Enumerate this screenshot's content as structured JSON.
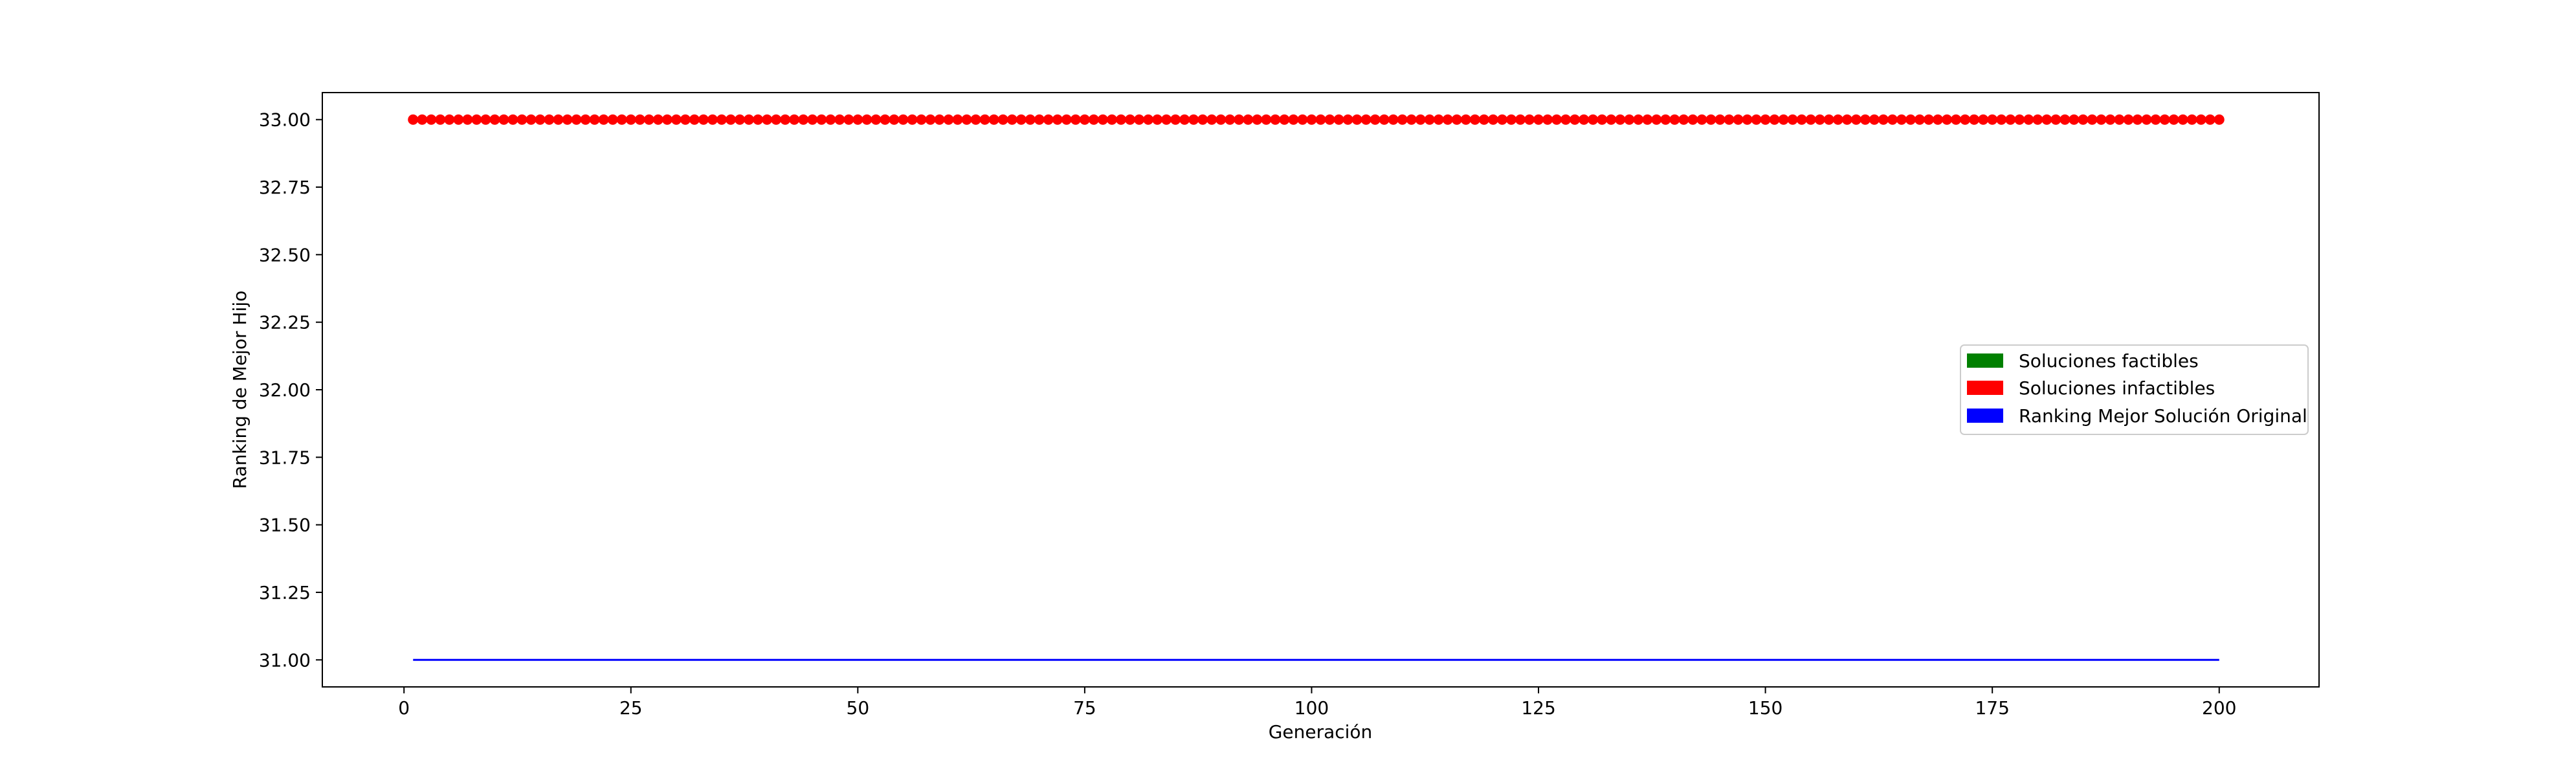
{
  "chart_data": {
    "type": "scatter",
    "title": "",
    "xlabel": "Generación",
    "ylabel": "Ranking de Mejor Hijo",
    "xlim": [
      -9,
      211
    ],
    "ylim": [
      30.9,
      33.1
    ],
    "xticks": [
      0,
      25,
      50,
      75,
      100,
      125,
      150,
      175,
      200
    ],
    "xtick_labels": [
      "0",
      "25",
      "50",
      "75",
      "100",
      "125",
      "150",
      "175",
      "200"
    ],
    "yticks": [
      31.0,
      31.25,
      31.5,
      31.75,
      32.0,
      32.25,
      32.5,
      32.75,
      33.0
    ],
    "ytick_labels": [
      "31.00",
      "31.25",
      "31.50",
      "31.75",
      "32.00",
      "32.25",
      "32.50",
      "32.75",
      "33.00"
    ],
    "grid": false,
    "legend_position": "center-right",
    "series": [
      {
        "name": "Soluciones infactibles",
        "type": "scatter",
        "color": "#ff0000",
        "x_start": 1,
        "x_end": 200,
        "x_step": 1,
        "y_constant": 33.0
      },
      {
        "name": "Ranking Mejor Solución Original",
        "type": "line",
        "color": "#0000ff",
        "x": [
          1,
          200
        ],
        "y": [
          31.0,
          31.0
        ]
      }
    ],
    "legend": [
      {
        "label": "Soluciones factibles",
        "color": "#008000"
      },
      {
        "label": "Soluciones infactibles",
        "color": "#ff0000"
      },
      {
        "label": "Ranking Mejor Solución Original",
        "color": "#0000ff"
      }
    ]
  }
}
